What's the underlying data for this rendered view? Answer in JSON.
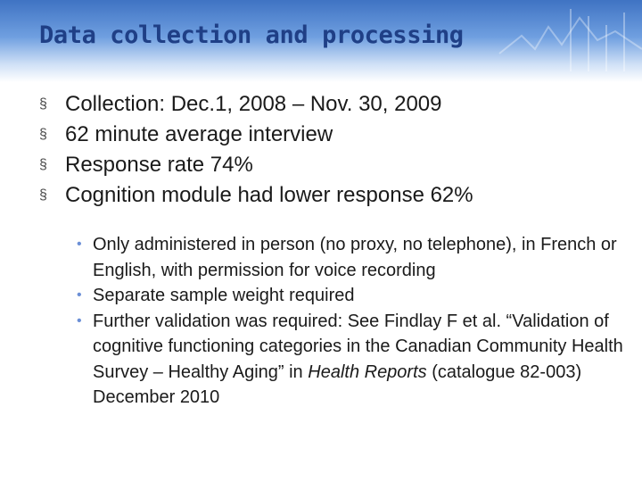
{
  "slide": {
    "title": "Data collection and processing",
    "bullets": [
      "Collection: Dec.1, 2008 – Nov. 30, 2009",
      "62 minute average interview",
      "Response rate 74%",
      "Cognition module had lower response 62%"
    ],
    "sub_bullets": [
      "Only administered in person (no proxy, no telephone), in French or English, with permission for voice recording",
      "Separate sample weight required",
      "Further validation was required:  See Findlay F et al. “Validation of cognitive functioning categories in the Canadian Community Health Survey – Healthy Aging” in Health Reports (catalogue 82-003) December 2010"
    ],
    "sub3_parts": {
      "before": "Further validation was required:  See Findlay F et al. “Validation of cognitive functioning categories in the Canadian Community Health Survey – Healthy Aging” in ",
      "italic": "Health Reports",
      "after": " (catalogue 82-003) December 2010"
    },
    "bullet_glyph": "§",
    "sub_bullet_glyph": "•",
    "colors": {
      "title": "#1f3f86",
      "header_top": "#3f73c3",
      "sub_bullet": "#6b8fd6"
    }
  }
}
